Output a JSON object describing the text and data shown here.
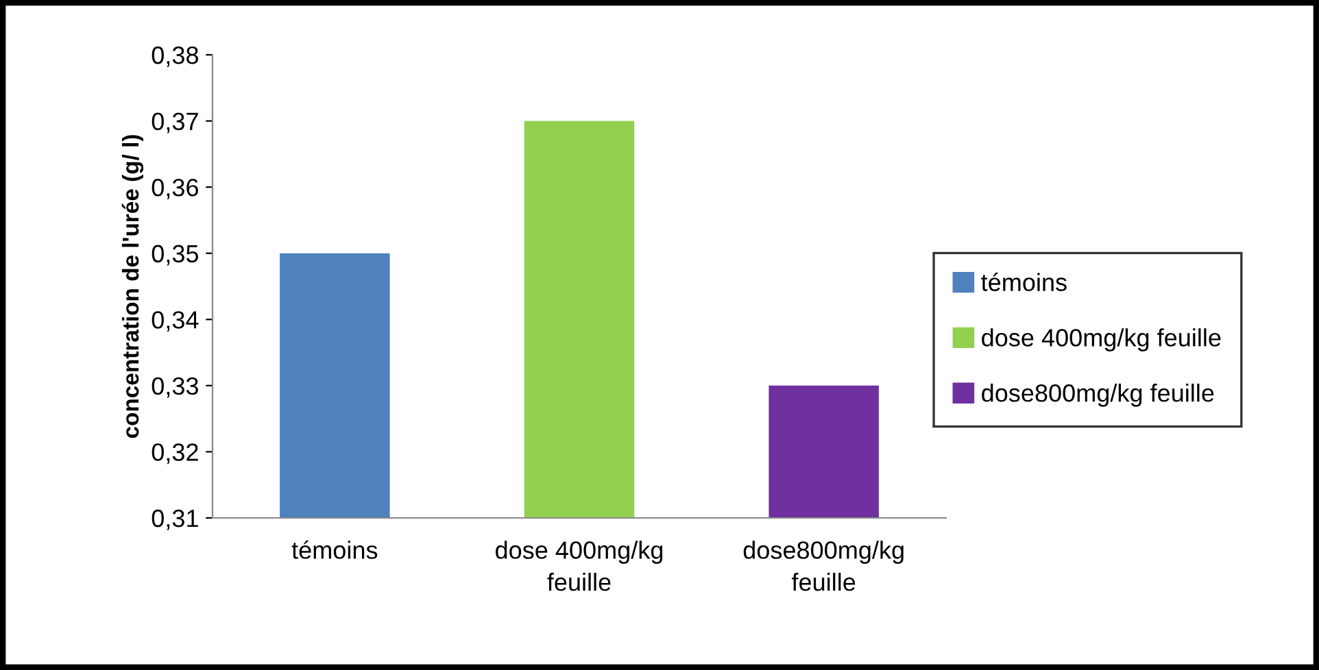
{
  "chart_data": {
    "type": "bar",
    "ylabel": "concentration de l'urée (g/ l)",
    "categories": [
      "témoins",
      "dose 400mg/kg\nfeuille",
      "dose800mg/kg\nfeuille"
    ],
    "series": [
      {
        "name": "témoins",
        "color": "#4f81bd",
        "values": [
          0.35,
          null,
          null
        ]
      },
      {
        "name": "dose 400mg/kg feuille",
        "color": "#92d050",
        "values": [
          null,
          0.37,
          null
        ]
      },
      {
        "name": "dose800mg/kg feuille",
        "color": "#7030a0",
        "values": [
          null,
          null,
          0.33
        ]
      }
    ],
    "ylim": [
      0.31,
      0.38
    ],
    "yticks": [
      {
        "value": 0.31,
        "label": "0,31"
      },
      {
        "value": 0.32,
        "label": "0,32"
      },
      {
        "value": 0.33,
        "label": "0,33"
      },
      {
        "value": 0.34,
        "label": "0,34"
      },
      {
        "value": 0.35,
        "label": "0,35"
      },
      {
        "value": 0.36,
        "label": "0,36"
      },
      {
        "value": 0.37,
        "label": "0,37"
      },
      {
        "value": 0.38,
        "label": "0,38"
      }
    ],
    "grid": false,
    "legend": "right"
  }
}
